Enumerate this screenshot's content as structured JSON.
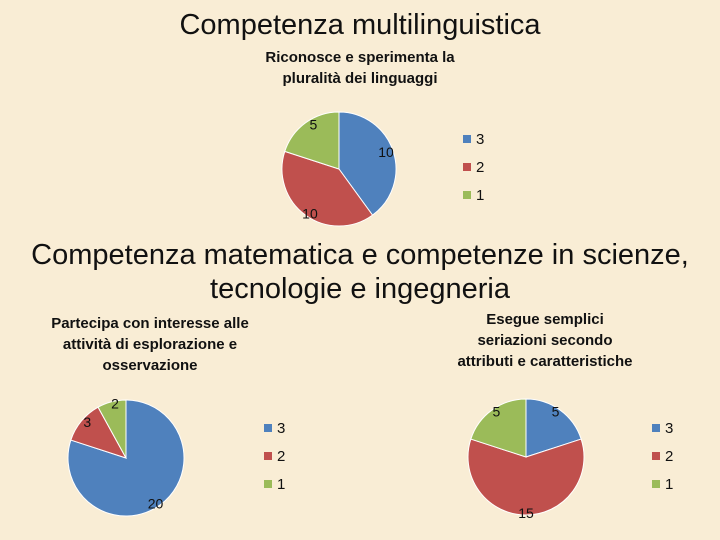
{
  "section_1": {
    "title": "Competenza multilinguistica"
  },
  "section_2": {
    "title_line1": "Competenza matematica e competenze in scienze,",
    "title_line2": "tecnologie e ingegneria"
  },
  "chart_data": [
    {
      "type": "pie",
      "title": "Riconosce e sperimenta la pluralità dei linguaggi",
      "title_lines": [
        "Riconosce e sperimenta la",
        "pluralità dei linguaggi"
      ],
      "categories": [
        "3",
        "2",
        "1"
      ],
      "values": [
        10,
        10,
        5
      ],
      "colors": [
        "#4f81bd",
        "#c0504d",
        "#9bbb59"
      ],
      "data_labels": true,
      "legend": "right"
    },
    {
      "type": "pie",
      "title": "Partecipa con interesse alle attività di esplorazione e osservazione",
      "title_lines": [
        "Partecipa con interesse alle",
        "attività di esplorazione e",
        "osservazione"
      ],
      "categories": [
        "3",
        "2",
        "1"
      ],
      "values": [
        20,
        3,
        2
      ],
      "colors": [
        "#4f81bd",
        "#c0504d",
        "#9bbb59"
      ],
      "data_labels": true,
      "legend": "right"
    },
    {
      "type": "pie",
      "title": "Esegue semplici seriazioni secondo attributi e caratteristiche",
      "title_lines": [
        "Esegue semplici",
        "seriazioni secondo",
        "attributi e caratteristiche"
      ],
      "categories": [
        "3",
        "2",
        "1"
      ],
      "values": [
        5,
        15,
        5
      ],
      "colors": [
        "#4f81bd",
        "#c0504d",
        "#9bbb59"
      ],
      "data_labels": true,
      "legend": "right"
    }
  ]
}
